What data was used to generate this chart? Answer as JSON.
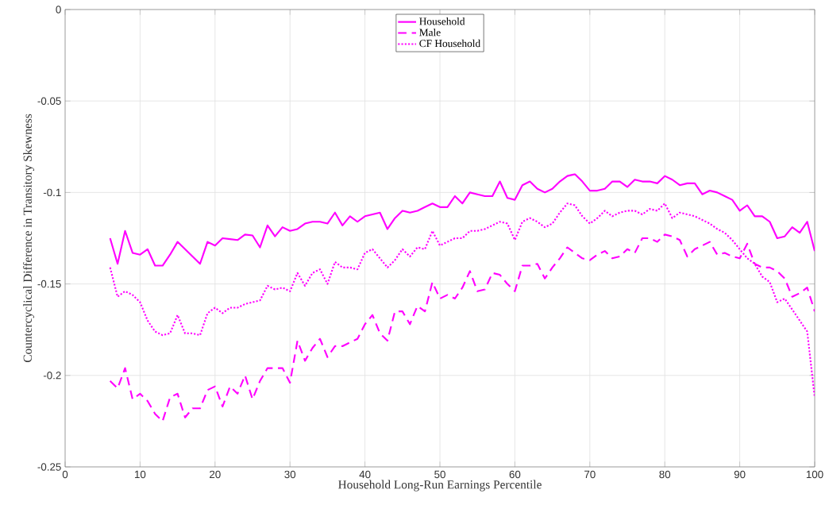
{
  "chart_data": {
    "type": "line",
    "xlabel": "Household Long-Run Earnings Percentile",
    "ylabel": "Countercyclical Difference in Transitory Skewness",
    "xlim": [
      0,
      100
    ],
    "ylim": [
      -0.25,
      0
    ],
    "xticks": [
      0,
      10,
      20,
      30,
      40,
      50,
      60,
      70,
      80,
      90,
      100
    ],
    "yticks": [
      -0.25,
      -0.2,
      -0.15,
      -0.1,
      -0.05,
      0
    ],
    "grid": true,
    "legend": "top",
    "marker": "none",
    "x": [
      6,
      7,
      8,
      9,
      10,
      11,
      12,
      13,
      14,
      15,
      16,
      17,
      18,
      19,
      20,
      21,
      22,
      23,
      24,
      25,
      26,
      27,
      28,
      29,
      30,
      31,
      32,
      33,
      34,
      35,
      36,
      37,
      38,
      39,
      40,
      41,
      42,
      43,
      44,
      45,
      46,
      47,
      48,
      49,
      50,
      51,
      52,
      53,
      54,
      55,
      56,
      57,
      58,
      59,
      60,
      61,
      62,
      63,
      64,
      65,
      66,
      67,
      68,
      69,
      70,
      71,
      72,
      73,
      74,
      75,
      76,
      77,
      78,
      79,
      80,
      81,
      82,
      83,
      84,
      85,
      86,
      87,
      88,
      89,
      90,
      91,
      92,
      93,
      94,
      95,
      96,
      97,
      98,
      99,
      100
    ],
    "series": [
      {
        "name": "Household",
        "color": "#ff00ff",
        "line_style": "solid",
        "values": [
          -0.125,
          -0.139,
          -0.121,
          -0.133,
          -0.134,
          -0.131,
          -0.14,
          -0.14,
          -0.134,
          -0.127,
          -0.131,
          -0.135,
          -0.139,
          -0.127,
          -0.129,
          -0.125,
          -0.1255,
          -0.126,
          -0.123,
          -0.1235,
          -0.13,
          -0.118,
          -0.124,
          -0.119,
          -0.121,
          -0.12,
          -0.117,
          -0.116,
          -0.116,
          -0.117,
          -0.111,
          -0.118,
          -0.113,
          -0.116,
          -0.113,
          -0.112,
          -0.111,
          -0.12,
          -0.114,
          -0.11,
          -0.111,
          -0.11,
          -0.108,
          -0.106,
          -0.108,
          -0.108,
          -0.102,
          -0.106,
          -0.1,
          -0.101,
          -0.102,
          -0.102,
          -0.094,
          -0.103,
          -0.104,
          -0.096,
          -0.094,
          -0.098,
          -0.1,
          -0.098,
          -0.094,
          -0.091,
          -0.09,
          -0.094,
          -0.099,
          -0.099,
          -0.098,
          -0.094,
          -0.094,
          -0.097,
          -0.093,
          -0.094,
          -0.094,
          -0.095,
          -0.091,
          -0.093,
          -0.096,
          -0.095,
          -0.095,
          -0.101,
          -0.099,
          -0.1,
          -0.102,
          -0.104,
          -0.11,
          -0.107,
          -0.113,
          -0.113,
          -0.116,
          -0.125,
          -0.124,
          -0.119,
          -0.122,
          -0.116,
          -0.132
        ]
      },
      {
        "name": "Male",
        "color": "#ff00ff",
        "line_style": "dashed",
        "values": [
          -0.203,
          -0.207,
          -0.196,
          -0.213,
          -0.21,
          -0.214,
          -0.221,
          -0.225,
          -0.212,
          -0.21,
          -0.223,
          -0.218,
          -0.218,
          -0.208,
          -0.206,
          -0.217,
          -0.206,
          -0.21,
          -0.2,
          -0.213,
          -0.203,
          -0.196,
          -0.196,
          -0.196,
          -0.204,
          -0.181,
          -0.192,
          -0.185,
          -0.18,
          -0.19,
          -0.184,
          -0.184,
          -0.182,
          -0.18,
          -0.172,
          -0.167,
          -0.177,
          -0.181,
          -0.165,
          -0.165,
          -0.172,
          -0.162,
          -0.165,
          -0.149,
          -0.158,
          -0.156,
          -0.158,
          -0.152,
          -0.143,
          -0.154,
          -0.153,
          -0.144,
          -0.145,
          -0.15,
          -0.154,
          -0.14,
          -0.14,
          -0.139,
          -0.147,
          -0.141,
          -0.136,
          -0.13,
          -0.133,
          -0.136,
          -0.137,
          -0.134,
          -0.132,
          -0.136,
          -0.135,
          -0.131,
          -0.133,
          -0.125,
          -0.125,
          -0.127,
          -0.123,
          -0.124,
          -0.126,
          -0.135,
          -0.131,
          -0.129,
          -0.127,
          -0.134,
          -0.133,
          -0.135,
          -0.136,
          -0.128,
          -0.139,
          -0.141,
          -0.141,
          -0.143,
          -0.147,
          -0.157,
          -0.155,
          -0.152,
          -0.165
        ]
      },
      {
        "name": "CF Household",
        "color": "#ff00ff",
        "line_style": "dotted",
        "values": [
          -0.141,
          -0.157,
          -0.154,
          -0.156,
          -0.16,
          -0.17,
          -0.176,
          -0.178,
          -0.177,
          -0.167,
          -0.177,
          -0.177,
          -0.178,
          -0.166,
          -0.163,
          -0.166,
          -0.163,
          -0.163,
          -0.161,
          -0.16,
          -0.159,
          -0.151,
          -0.153,
          -0.152,
          -0.154,
          -0.144,
          -0.151,
          -0.144,
          -0.142,
          -0.15,
          -0.138,
          -0.141,
          -0.141,
          -0.142,
          -0.133,
          -0.131,
          -0.136,
          -0.141,
          -0.137,
          -0.131,
          -0.135,
          -0.13,
          -0.131,
          -0.121,
          -0.129,
          -0.127,
          -0.125,
          -0.125,
          -0.121,
          -0.121,
          -0.12,
          -0.118,
          -0.116,
          -0.117,
          -0.126,
          -0.116,
          -0.114,
          -0.116,
          -0.119,
          -0.117,
          -0.111,
          -0.106,
          -0.107,
          -0.113,
          -0.117,
          -0.114,
          -0.11,
          -0.113,
          -0.111,
          -0.11,
          -0.11,
          -0.112,
          -0.109,
          -0.11,
          -0.106,
          -0.114,
          -0.111,
          -0.112,
          -0.113,
          -0.115,
          -0.117,
          -0.12,
          -0.122,
          -0.126,
          -0.131,
          -0.136,
          -0.139,
          -0.146,
          -0.149,
          -0.16,
          -0.158,
          -0.164,
          -0.17,
          -0.176,
          -0.212
        ]
      }
    ]
  }
}
